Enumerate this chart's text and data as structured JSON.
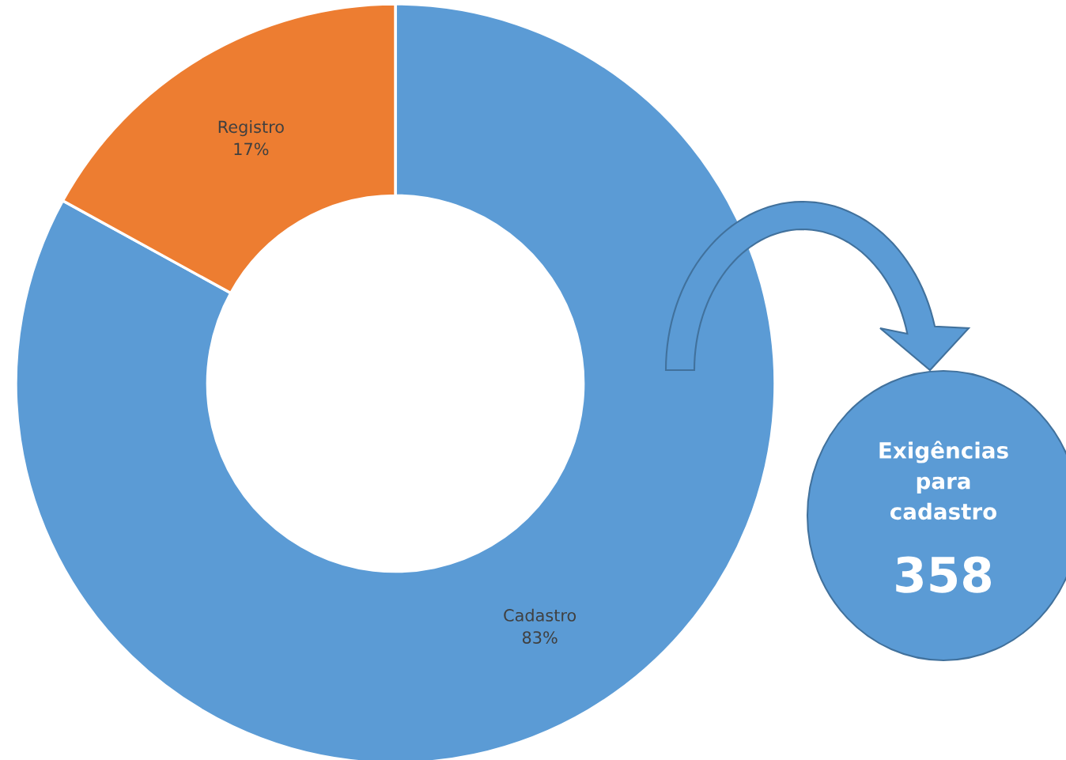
{
  "chart_data": {
    "type": "donut",
    "categories": [
      "Cadastro",
      "Registro"
    ],
    "values": [
      83,
      17
    ],
    "colors": [
      "#5b9bd5",
      "#ed7d31"
    ],
    "value_labels": [
      "83%",
      "17%"
    ],
    "annotations": [
      "Exigências para cadastro",
      "358"
    ]
  }
}
